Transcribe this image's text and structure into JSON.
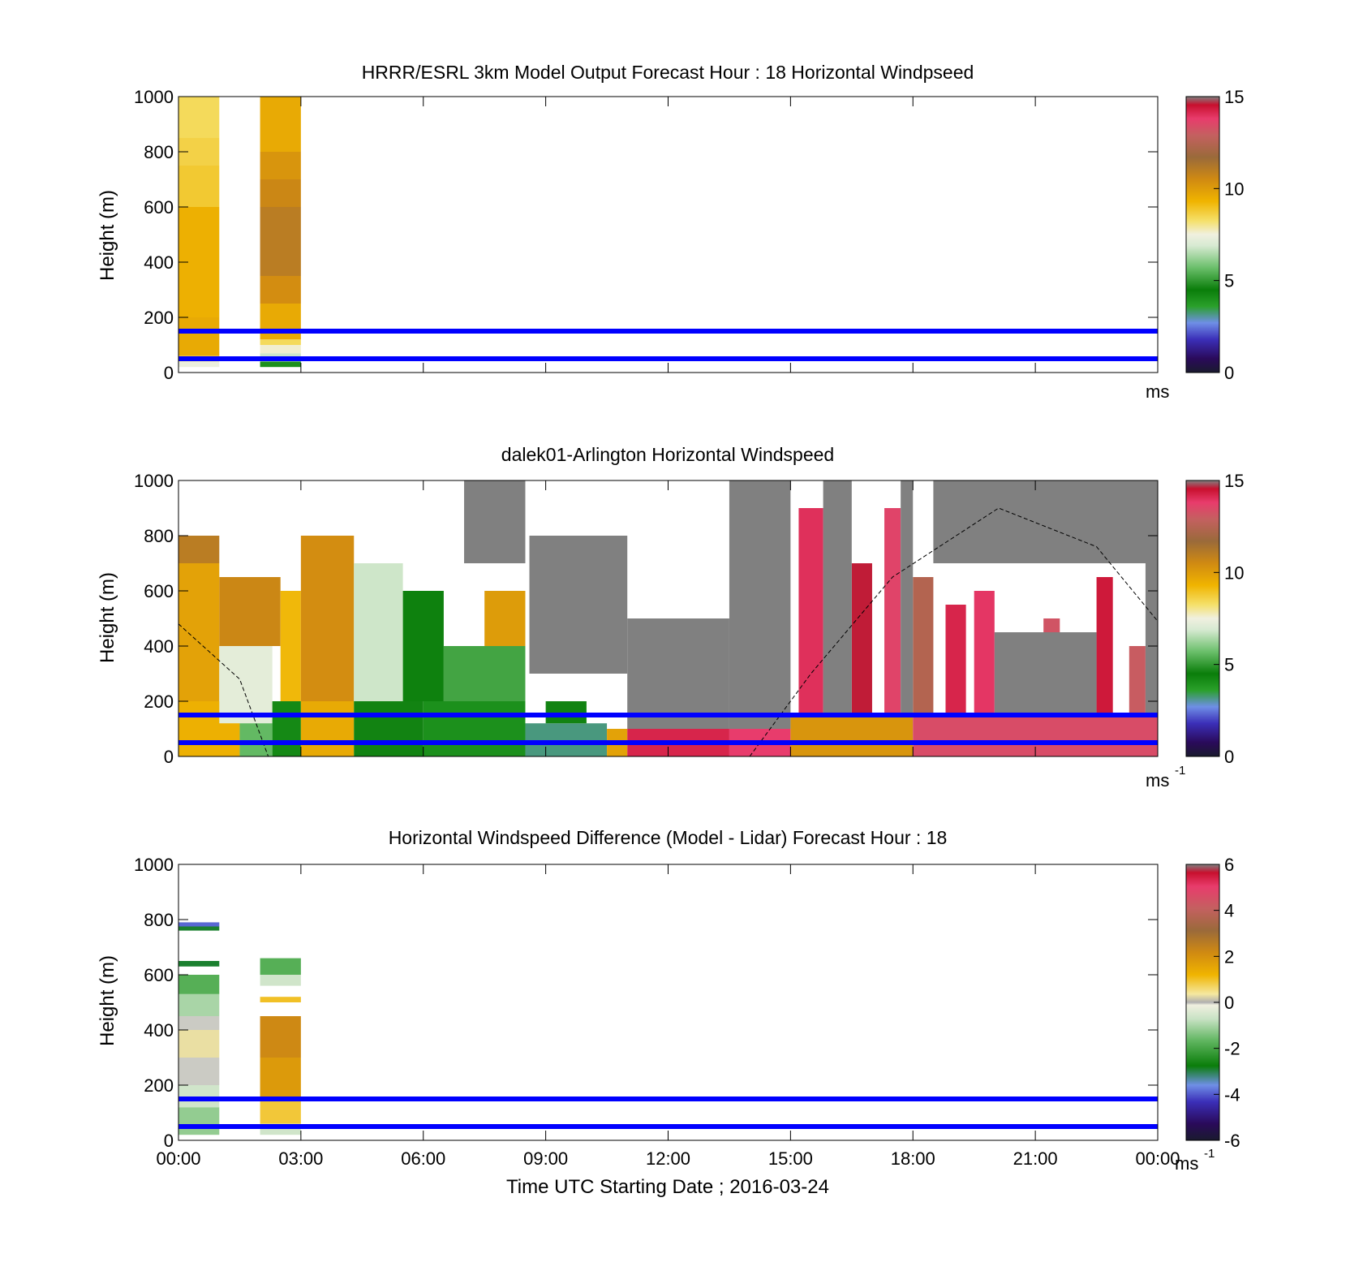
{
  "time_label": "Time UTC  Starting Date ; 2016-03-24",
  "colors": {
    "reference_lines": "#0000ff",
    "missing": "#808080"
  },
  "colormaps": {
    "speed": [
      [
        0.0,
        "#1a1a2e"
      ],
      [
        0.05,
        "#2a0a5a"
      ],
      [
        0.12,
        "#3b2fb8"
      ],
      [
        0.18,
        "#6f8fe6"
      ],
      [
        0.24,
        "#2aa02a"
      ],
      [
        0.3,
        "#0a7d0a"
      ],
      [
        0.38,
        "#6bbf6b"
      ],
      [
        0.46,
        "#d7ead2"
      ],
      [
        0.5,
        "#f0f0e0"
      ],
      [
        0.55,
        "#f5e06a"
      ],
      [
        0.62,
        "#f0b400"
      ],
      [
        0.7,
        "#d08a12"
      ],
      [
        0.78,
        "#9a6a3a"
      ],
      [
        0.86,
        "#c46060"
      ],
      [
        0.92,
        "#e83c6c"
      ],
      [
        0.97,
        "#c8102e"
      ],
      [
        1.0,
        "#808080"
      ]
    ],
    "difference": [
      [
        0.0,
        "#1a1a2e"
      ],
      [
        0.06,
        "#2a0a5a"
      ],
      [
        0.14,
        "#3b2fb8"
      ],
      [
        0.2,
        "#6f8fe6"
      ],
      [
        0.27,
        "#0a7d0a"
      ],
      [
        0.36,
        "#5fb55f"
      ],
      [
        0.44,
        "#c8e2c4"
      ],
      [
        0.49,
        "#f0f0e0"
      ],
      [
        0.5,
        "#b0b0b0"
      ],
      [
        0.53,
        "#f5e8a0"
      ],
      [
        0.6,
        "#f0b400"
      ],
      [
        0.68,
        "#d08a12"
      ],
      [
        0.76,
        "#9a6a3a"
      ],
      [
        0.84,
        "#c46060"
      ],
      [
        0.92,
        "#e83c6c"
      ],
      [
        0.97,
        "#c8102e"
      ],
      [
        1.0,
        "#808080"
      ]
    ]
  },
  "chart_data": [
    {
      "type": "heatmap",
      "title": "HRRR/ESRL 3km Model Output   Forecast Hour : 18 Horizontal Windpseed",
      "xlabel": "",
      "ylabel": "Height (m)",
      "xlim": [
        0,
        24
      ],
      "ylim": [
        0,
        1000
      ],
      "x_ticks": [],
      "y_ticks": [
        "0",
        "200",
        "400",
        "600",
        "800",
        "1000"
      ],
      "colorbar": {
        "colormap": "speed",
        "range": [
          0,
          15
        ],
        "ticks": [
          "0",
          "5",
          "10",
          "15"
        ],
        "unit": "ms",
        "unit_sup": ""
      },
      "reference_lines_m": [
        50,
        150
      ],
      "cells": [
        {
          "x0": 0,
          "x1": 1,
          "y0": 20,
          "y1": 40,
          "v": 7.4
        },
        {
          "x0": 0,
          "x1": 1,
          "y0": 40,
          "y1": 60,
          "v": 8.1
        },
        {
          "x0": 0,
          "x1": 1,
          "y0": 60,
          "y1": 200,
          "v": 9.6
        },
        {
          "x0": 0,
          "x1": 1,
          "y0": 200,
          "y1": 600,
          "v": 9.4
        },
        {
          "x0": 0,
          "x1": 1,
          "y0": 600,
          "y1": 750,
          "v": 8.8
        },
        {
          "x0": 0,
          "x1": 1,
          "y0": 750,
          "y1": 850,
          "v": 8.6
        },
        {
          "x0": 0,
          "x1": 1,
          "y0": 850,
          "y1": 1000,
          "v": 8.4
        },
        {
          "x0": 2,
          "x1": 3,
          "y0": 20,
          "y1": 40,
          "v": 4.0
        },
        {
          "x0": 2,
          "x1": 3,
          "y0": 40,
          "y1": 70,
          "v": 6.8
        },
        {
          "x0": 2,
          "x1": 3,
          "y0": 70,
          "y1": 100,
          "v": 7.6
        },
        {
          "x0": 2,
          "x1": 3,
          "y0": 100,
          "y1": 120,
          "v": 8.4
        },
        {
          "x0": 2,
          "x1": 3,
          "y0": 120,
          "y1": 250,
          "v": 9.6
        },
        {
          "x0": 2,
          "x1": 3,
          "y0": 250,
          "y1": 350,
          "v": 10.4
        },
        {
          "x0": 2,
          "x1": 3,
          "y0": 350,
          "y1": 600,
          "v": 11.0
        },
        {
          "x0": 2,
          "x1": 3,
          "y0": 600,
          "y1": 700,
          "v": 10.6
        },
        {
          "x0": 2,
          "x1": 3,
          "y0": 700,
          "y1": 800,
          "v": 10.2
        },
        {
          "x0": 2,
          "x1": 3,
          "y0": 800,
          "y1": 1000,
          "v": 9.6
        }
      ]
    },
    {
      "type": "heatmap",
      "title": "dalek01-Arlington  Horizontal Windspeed",
      "xlabel": "",
      "ylabel": "Height (m)",
      "xlim": [
        0,
        24
      ],
      "ylim": [
        0,
        1000
      ],
      "x_ticks": [],
      "y_ticks": [
        "0",
        "200",
        "400",
        "600",
        "800",
        "1000"
      ],
      "colorbar": {
        "colormap": "speed",
        "range": [
          0,
          15
        ],
        "ticks": [
          "0",
          "5",
          "10",
          "15"
        ],
        "unit": "ms",
        "unit_sup": "-1"
      },
      "reference_lines_m": [
        50,
        150
      ],
      "dashed_curve": {
        "segments": [
          [
            [
              0,
              480
            ],
            [
              1.5,
              280
            ],
            [
              2.2,
              0
            ]
          ],
          [
            [
              14,
              0
            ],
            [
              15.5,
              300
            ],
            [
              17.5,
              650
            ],
            [
              20.1,
              900
            ],
            [
              22.5,
              760
            ],
            [
              24,
              490
            ]
          ]
        ]
      },
      "cells": [
        {
          "x0": 0,
          "x1": 1.5,
          "y0": 0,
          "y1": 200,
          "v": 9.4
        },
        {
          "x0": 0,
          "x1": 1,
          "y0": 200,
          "y1": 700,
          "v": 9.8
        },
        {
          "x0": 0,
          "x1": 1,
          "y0": 700,
          "y1": 800,
          "v": 11.0
        },
        {
          "x0": 1,
          "x1": 2.3,
          "y0": 120,
          "y1": 400,
          "v": 7.2
        },
        {
          "x0": 1.5,
          "x1": 2.3,
          "y0": 0,
          "y1": 120,
          "v": 5.6
        },
        {
          "x0": 1,
          "x1": 2.5,
          "y0": 400,
          "y1": 650,
          "v": 10.6
        },
        {
          "x0": 2.3,
          "x1": 3,
          "y0": 0,
          "y1": 200,
          "v": 4.2
        },
        {
          "x0": 2.5,
          "x1": 3,
          "y0": 200,
          "y1": 600,
          "v": 9.2
        },
        {
          "x0": 3,
          "x1": 4.3,
          "y0": 0,
          "y1": 200,
          "v": 9.6
        },
        {
          "x0": 3,
          "x1": 4.3,
          "y0": 200,
          "y1": 800,
          "v": 10.4
        },
        {
          "x0": 4.3,
          "x1": 6,
          "y0": 0,
          "y1": 200,
          "v": 4.6
        },
        {
          "x0": 4.3,
          "x1": 5.5,
          "y0": 200,
          "y1": 700,
          "v": 6.8
        },
        {
          "x0": 5.5,
          "x1": 6.5,
          "y0": 200,
          "y1": 600,
          "v": 4.4
        },
        {
          "x0": 6,
          "x1": 8.5,
          "y0": 0,
          "y1": 200,
          "v": 4.0
        },
        {
          "x0": 6.5,
          "x1": 8.5,
          "y0": 200,
          "y1": 400,
          "v": 5.2
        },
        {
          "x0": 7.5,
          "x1": 8.5,
          "y0": 400,
          "y1": 600,
          "v": 10.0
        },
        {
          "x0": 8.5,
          "x1": 10.5,
          "y0": 0,
          "y1": 120,
          "v": 3.2
        },
        {
          "x0": 9,
          "x1": 10,
          "y0": 120,
          "y1": 200,
          "v": 4.6
        },
        {
          "x0": 10.5,
          "x1": 11,
          "y0": 0,
          "y1": 100,
          "v": 9.8
        },
        {
          "x0": 11,
          "x1": 13.5,
          "y0": 0,
          "y1": 100,
          "v": 14.2
        },
        {
          "x0": 13.5,
          "x1": 15,
          "y0": 0,
          "y1": 100,
          "v": 13.8
        },
        {
          "x0": 15,
          "x1": 18,
          "y0": 0,
          "y1": 150,
          "v": 10.2
        },
        {
          "x0": 18,
          "x1": 24,
          "y0": 0,
          "y1": 150,
          "v": 13.4
        },
        {
          "x0": 15.2,
          "x1": 15.8,
          "y0": 150,
          "y1": 900,
          "v": 14.0
        },
        {
          "x0": 16.5,
          "x1": 17,
          "y0": 150,
          "y1": 700,
          "v": 14.6
        },
        {
          "x0": 17.3,
          "x1": 17.7,
          "y0": 150,
          "y1": 900,
          "v": 13.6
        },
        {
          "x0": 18,
          "x1": 18.5,
          "y0": 150,
          "y1": 650,
          "v": 12.4
        },
        {
          "x0": 18.8,
          "x1": 19.3,
          "y0": 150,
          "y1": 550,
          "v": 14.2
        },
        {
          "x0": 19.5,
          "x1": 20,
          "y0": 150,
          "y1": 600,
          "v": 13.9
        },
        {
          "x0": 20.5,
          "x1": 20.9,
          "y0": 150,
          "y1": 450,
          "v": 14.8
        },
        {
          "x0": 21.2,
          "x1": 21.6,
          "y0": 150,
          "y1": 500,
          "v": 13.2
        },
        {
          "x0": 22.5,
          "x1": 22.9,
          "y0": 150,
          "y1": 650,
          "v": 14.4
        },
        {
          "x0": 23.3,
          "x1": 23.7,
          "y0": 150,
          "y1": 400,
          "v": 13.0
        },
        {
          "x0": 13.5,
          "x1": 15,
          "y0": 100,
          "y1": 1000,
          "v": 15
        },
        {
          "x0": 15.8,
          "x1": 16.5,
          "y0": 150,
          "y1": 1000,
          "v": 15
        },
        {
          "x0": 17.7,
          "x1": 18,
          "y0": 150,
          "y1": 1000,
          "v": 15
        },
        {
          "x0": 18.5,
          "x1": 24,
          "y0": 700,
          "y1": 1000,
          "v": 15
        },
        {
          "x0": 20,
          "x1": 22.5,
          "y0": 150,
          "y1": 450,
          "v": 15
        },
        {
          "x0": 23.7,
          "x1": 24,
          "y0": 150,
          "y1": 700,
          "v": 15
        },
        {
          "x0": 8.6,
          "x1": 11,
          "y0": 300,
          "y1": 800,
          "v": 15
        },
        {
          "x0": 11,
          "x1": 13.5,
          "y0": 100,
          "y1": 500,
          "v": 15
        },
        {
          "x0": 7,
          "x1": 8.5,
          "y0": 700,
          "y1": 1000,
          "v": 15
        }
      ]
    },
    {
      "type": "heatmap",
      "title": "Horizontal Windspeed Difference (Model - Lidar) Forecast Hour : 18",
      "xlabel": "Time UTC  Starting Date ; 2016-03-24",
      "ylabel": "Height (m)",
      "xlim": [
        0,
        24
      ],
      "ylim": [
        0,
        1000
      ],
      "x_ticks": [
        "00:00",
        "03:00",
        "06:00",
        "09:00",
        "12:00",
        "15:00",
        "18:00",
        "21:00",
        "00:00"
      ],
      "y_ticks": [
        "0",
        "200",
        "400",
        "600",
        "800",
        "1000"
      ],
      "colorbar": {
        "colormap": "difference",
        "range": [
          -6,
          6
        ],
        "ticks": [
          "-6",
          "-4",
          "-2",
          "0",
          "2",
          "4",
          "6"
        ],
        "unit": "ms",
        "unit_sup": "-1"
      },
      "reference_lines_m": [
        50,
        150
      ],
      "cells": [
        {
          "x0": 0,
          "x1": 1,
          "y0": 20,
          "y1": 120,
          "v": -1.2
        },
        {
          "x0": 0,
          "x1": 1,
          "y0": 120,
          "y1": 200,
          "v": -0.6
        },
        {
          "x0": 0,
          "x1": 1,
          "y0": 200,
          "y1": 300,
          "v": -0.05
        },
        {
          "x0": 0,
          "x1": 1,
          "y0": 300,
          "y1": 400,
          "v": 0.3
        },
        {
          "x0": 0,
          "x1": 1,
          "y0": 400,
          "y1": 450,
          "v": -0.05
        },
        {
          "x0": 0,
          "x1": 1,
          "y0": 450,
          "y1": 530,
          "v": -1.0
        },
        {
          "x0": 0,
          "x1": 1,
          "y0": 530,
          "y1": 600,
          "v": -1.8
        },
        {
          "x0": 0,
          "x1": 1,
          "y0": 630,
          "y1": 650,
          "v": -2.9
        },
        {
          "x0": 0,
          "x1": 1,
          "y0": 760,
          "y1": 775,
          "v": -2.9
        },
        {
          "x0": 0,
          "x1": 1,
          "y0": 775,
          "y1": 790,
          "v": -3.9
        },
        {
          "x0": 2,
          "x1": 3,
          "y0": 20,
          "y1": 60,
          "v": -0.6
        },
        {
          "x0": 2,
          "x1": 3,
          "y0": 60,
          "y1": 150,
          "v": 0.9
        },
        {
          "x0": 2,
          "x1": 3,
          "y0": 150,
          "y1": 300,
          "v": 1.8
        },
        {
          "x0": 2,
          "x1": 3,
          "y0": 300,
          "y1": 450,
          "v": 2.2
        },
        {
          "x0": 2,
          "x1": 3,
          "y0": 500,
          "y1": 520,
          "v": 1.0
        },
        {
          "x0": 2,
          "x1": 3,
          "y0": 560,
          "y1": 600,
          "v": -0.6
        },
        {
          "x0": 2,
          "x1": 3,
          "y0": 600,
          "y1": 660,
          "v": -1.8
        }
      ]
    }
  ]
}
